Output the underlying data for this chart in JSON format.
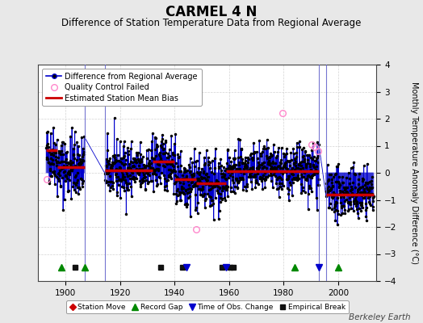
{
  "title": "CARMEL 4 N",
  "subtitle": "Difference of Station Temperature Data from Regional Average",
  "ylabel": "Monthly Temperature Anomaly Difference (°C)",
  "ylim": [
    -4,
    4
  ],
  "xlim": [
    1890,
    2014
  ],
  "background_color": "#e8e8e8",
  "plot_bg_color": "#ffffff",
  "grid_color": "#c8c8c8",
  "watermark": "Berkeley Earth",
  "seed": 42,
  "segments": [
    {
      "start": 1893.0,
      "end": 1897.0,
      "mean": 0.65,
      "std": 0.55
    },
    {
      "start": 1897.0,
      "end": 1907.0,
      "mean": 0.2,
      "std": 0.6
    },
    {
      "start": 1914.5,
      "end": 1932.0,
      "mean": 0.1,
      "std": 0.5
    },
    {
      "start": 1932.0,
      "end": 1940.0,
      "mean": 0.38,
      "std": 0.5
    },
    {
      "start": 1940.0,
      "end": 1948.0,
      "mean": -0.25,
      "std": 0.55
    },
    {
      "start": 1948.0,
      "end": 1959.0,
      "mean": -0.38,
      "std": 0.5
    },
    {
      "start": 1959.0,
      "end": 1984.0,
      "mean": 0.08,
      "std": 0.45
    },
    {
      "start": 1984.0,
      "end": 1993.0,
      "mean": 0.08,
      "std": 0.5
    },
    {
      "start": 1995.5,
      "end": 2013.0,
      "mean": -0.78,
      "std": 0.45
    }
  ],
  "bias_segments": [
    {
      "start": 1893.0,
      "end": 1897.0,
      "value": 0.85
    },
    {
      "start": 1897.0,
      "end": 1907.0,
      "value": 0.22
    },
    {
      "start": 1914.5,
      "end": 1932.0,
      "value": 0.1
    },
    {
      "start": 1932.0,
      "end": 1940.0,
      "value": 0.42
    },
    {
      "start": 1940.0,
      "end": 1948.0,
      "value": -0.25
    },
    {
      "start": 1948.0,
      "end": 1959.0,
      "value": -0.38
    },
    {
      "start": 1959.0,
      "end": 1993.0,
      "value": 0.05
    },
    {
      "start": 1995.5,
      "end": 2013.0,
      "value": -0.8
    }
  ],
  "gap_periods": [
    {
      "start": 1907.0,
      "end": 1914.5
    },
    {
      "start": 1993.0,
      "end": 1995.5
    }
  ],
  "record_gaps": [
    1898.5,
    1907.0,
    1984.0,
    2000.0
  ],
  "empirical_breaks": [
    1903.5,
    1935.0,
    1943.0,
    1957.5,
    1960.5,
    1961.5
  ],
  "time_obs_changes": [
    1944.5,
    1959.0,
    1993.0
  ],
  "qc_failed_x": [
    1893.3,
    1948.0,
    1979.5,
    1990.2,
    1991.5,
    1992.5
  ],
  "qc_failed_y": [
    -0.25,
    -2.1,
    2.22,
    1.05,
    0.95,
    0.82
  ],
  "line_color": "#0000cc",
  "dot_color": "#000000",
  "bias_color": "#cc0000",
  "qc_color": "#ff88cc",
  "gap_line_color": "#6666cc",
  "legend_fontsize": 7.0,
  "title_fontsize": 12,
  "subtitle_fontsize": 8.5,
  "tick_fontsize": 7.5,
  "watermark_fontsize": 7.5
}
